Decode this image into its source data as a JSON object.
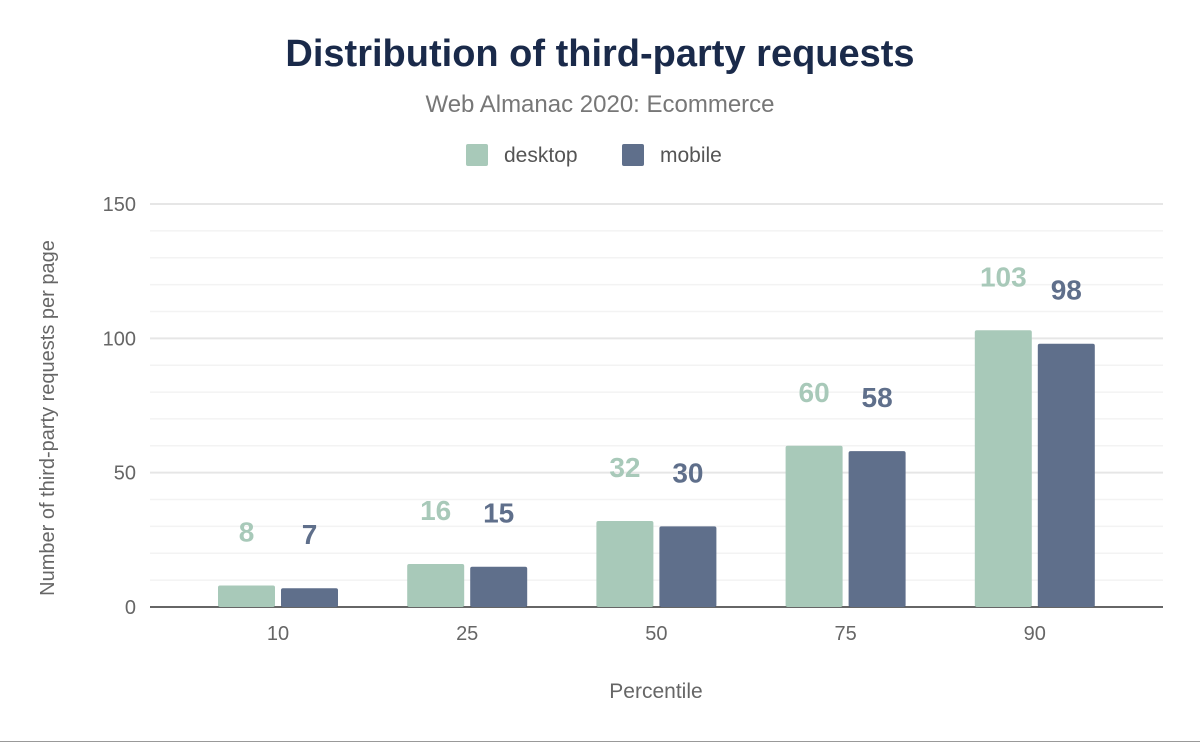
{
  "chart_data": {
    "type": "bar",
    "title": "Distribution of third-party requests",
    "subtitle": "Web Almanac 2020: Ecommerce",
    "xlabel": "Percentile",
    "ylabel": "Number of third-party requests per page",
    "categories": [
      "10",
      "25",
      "50",
      "75",
      "90"
    ],
    "series": [
      {
        "name": "desktop",
        "values": [
          8,
          16,
          32,
          60,
          103
        ],
        "color": "#a8c9b9"
      },
      {
        "name": "mobile",
        "values": [
          7,
          15,
          30,
          58,
          98
        ],
        "color": "#5f6f8b"
      }
    ],
    "ylim": [
      0,
      150
    ],
    "yticks": [
      "0",
      "50",
      "100",
      "150"
    ],
    "grid": true,
    "legend": "top-center",
    "data_labels": true
  },
  "colors": {
    "title": "#1a2a4a",
    "text": "#666"
  }
}
